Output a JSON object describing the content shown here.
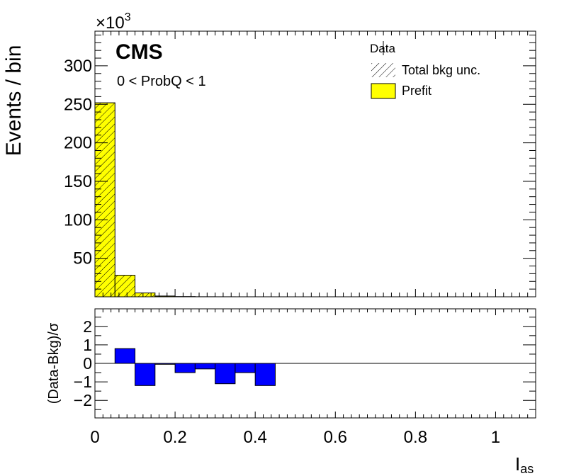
{
  "chart_data": {
    "type": "bar",
    "experiment_label": "CMS",
    "selection_label": "0 < ProbQ < 1",
    "x_label_main": "I",
    "x_label_sub": "as",
    "x_ticks": [
      "0",
      "0.2",
      "0.4",
      "0.6",
      "0.8",
      "1"
    ],
    "xlim": [
      0,
      1.1
    ],
    "top_panel": {
      "ylabel": "Events / bin",
      "exponent_base": "×10",
      "exponent_power": "3",
      "ylim": [
        0,
        345
      ],
      "y_ticks": [
        "50",
        "100",
        "150",
        "200",
        "250",
        "300"
      ],
      "bin_edges": [
        0,
        0.05,
        0.1,
        0.15,
        0.2,
        0.25,
        0.3,
        0.35,
        0.4,
        0.45
      ],
      "prefit_values": [
        252,
        28,
        5,
        1,
        0.3,
        0.1,
        0.05,
        0.02,
        0.01
      ],
      "legend": {
        "placement": "top-right",
        "entries": [
          "Data",
          "Total bkg unc.",
          "Prefit"
        ]
      }
    },
    "ratio_panel": {
      "ylabel": "(Data-Bkg)/σ",
      "ylim": [
        -2.95,
        2.95
      ],
      "y_ticks": [
        "2",
        "1",
        "0",
        "−1",
        "−2"
      ],
      "bin_edges": [
        0.05,
        0.1,
        0.15,
        0.2,
        0.25,
        0.3,
        0.35,
        0.4,
        0.45
      ],
      "pulls": [
        0.8,
        -1.2,
        -0.05,
        -0.5,
        -0.3,
        -1.1,
        -0.5,
        -1.2
      ]
    },
    "colors": {
      "prefit_fill": "#ffff00",
      "pull_fill": "#0000ff",
      "hatch": "#000000",
      "axes": "#000000"
    }
  }
}
